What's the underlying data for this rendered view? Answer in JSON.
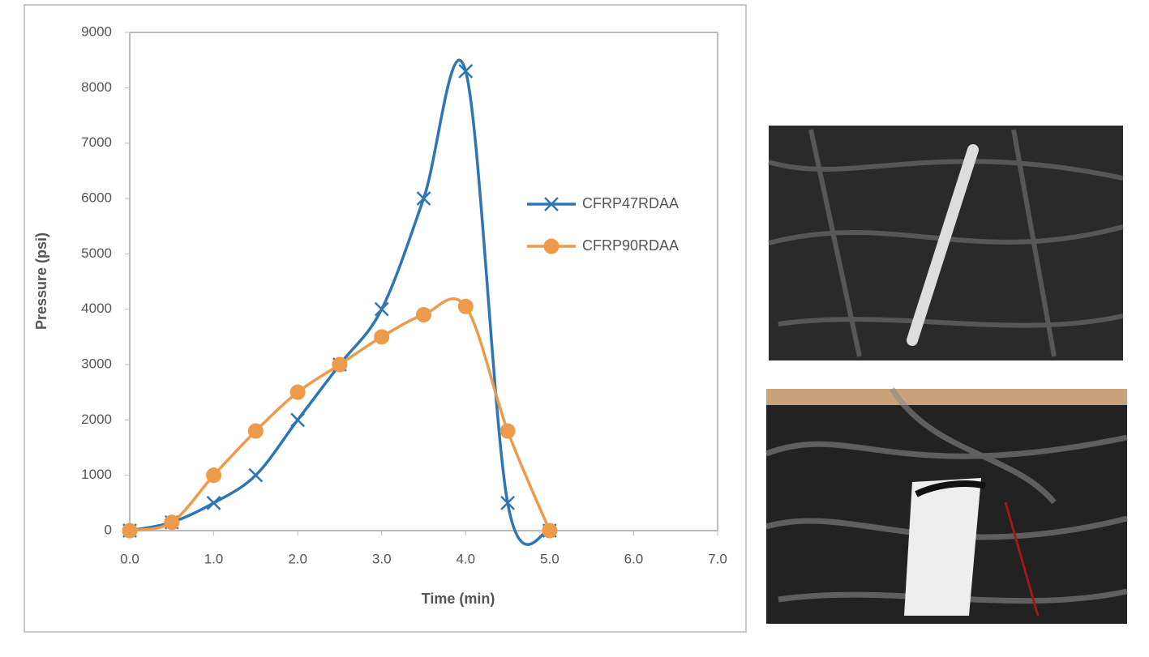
{
  "chart_data": {
    "type": "line",
    "x_label": "Time (min)",
    "y_label": "Pressure (psi)",
    "x": [
      0,
      0.5,
      1,
      1.5,
      2,
      2.5,
      3,
      3.5,
      4,
      4.5,
      5
    ],
    "series": [
      {
        "name": "CFRP47RDAA",
        "color": "#2e75b6",
        "marker": "x",
        "values": [
          0,
          150,
          500,
          1000,
          2000,
          3000,
          4000,
          6000,
          8300,
          500,
          0
        ]
      },
      {
        "name": "CFRP90RDAA",
        "color": "#ed9b4a",
        "marker": "circle",
        "values": [
          0,
          150,
          1000,
          1800,
          2500,
          3000,
          3500,
          3900,
          4050,
          1800,
          0
        ]
      }
    ],
    "xlim": [
      0,
      7
    ],
    "xticks": [
      {
        "value": 0,
        "label": "0.0"
      },
      {
        "value": 1,
        "label": "1.0"
      },
      {
        "value": 2,
        "label": "2.0"
      },
      {
        "value": 3,
        "label": "3.0"
      },
      {
        "value": 4,
        "label": "4.0"
      },
      {
        "value": 5,
        "label": "5.0"
      },
      {
        "value": 6,
        "label": "6.0"
      },
      {
        "value": 7,
        "label": "7.0"
      }
    ],
    "ylim": [
      0,
      9000
    ],
    "yticks": [
      0,
      1000,
      2000,
      3000,
      4000,
      5000,
      6000,
      7000,
      8000,
      9000
    ],
    "grid": false,
    "smooth": true,
    "legend": "right"
  }
}
